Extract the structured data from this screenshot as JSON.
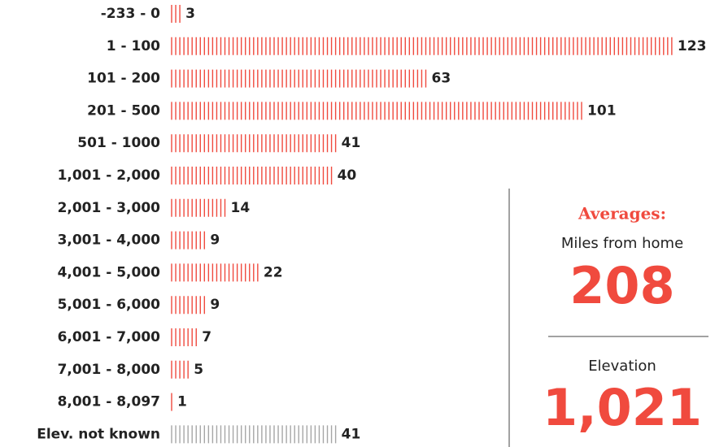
{
  "chart_data": {
    "type": "bar",
    "orientation": "horizontal",
    "categories": [
      "-233 - 0",
      "1 - 100",
      "101 - 200",
      "201 - 500",
      "501 - 1000",
      "1,001 - 2,000",
      "2,001 - 3,000",
      "3,001 - 4,000",
      "4,001 - 5,000",
      "5,001 - 6,000",
      "6,001 - 7,000",
      "7,001 - 8,000",
      "8,001 - 8,097",
      "Elev. not known"
    ],
    "values": [
      3,
      123,
      63,
      101,
      41,
      40,
      14,
      9,
      22,
      9,
      7,
      5,
      1,
      41
    ],
    "colors": [
      "#f04a3e",
      "#f04a3e",
      "#f04a3e",
      "#f04a3e",
      "#f04a3e",
      "#f04a3e",
      "#f04a3e",
      "#f04a3e",
      "#f04a3e",
      "#f04a3e",
      "#f04a3e",
      "#f04a3e",
      "#f04a3e",
      "#a6a6a6"
    ],
    "averages": {
      "title": "Averages:",
      "items": [
        {
          "label": "Miles from home",
          "value": 208
        },
        {
          "label": "Elevation",
          "value": 1021,
          "value_label": "1,021"
        }
      ]
    }
  }
}
